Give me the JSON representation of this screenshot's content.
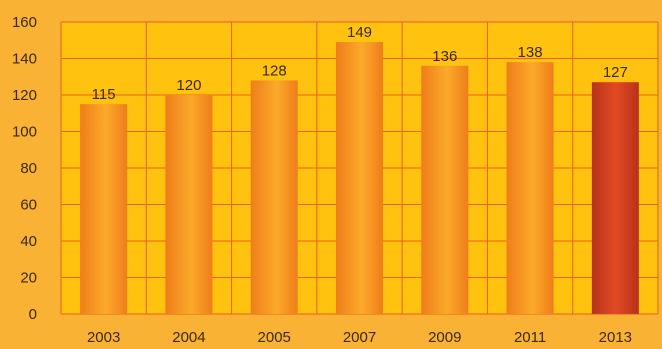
{
  "colors": {
    "background": "#f9b233",
    "plot_area": "#ffc20e",
    "grid": "#e8611a",
    "bar_light": "#fbaa2a",
    "bar_dark": "#ef7d1a",
    "highlight_light": "#e24a24",
    "highlight_dark": "#b8321a"
  },
  "chart_data": {
    "type": "bar",
    "categories": [
      "2003",
      "2004",
      "2005",
      "2007",
      "2009",
      "2011",
      "2013"
    ],
    "values": [
      115,
      120,
      128,
      149,
      136,
      138,
      127
    ],
    "highlighted_category": "2013",
    "ylim": [
      0,
      160
    ],
    "yticks": [
      0,
      20,
      40,
      60,
      80,
      100,
      120,
      140,
      160
    ],
    "grid": true,
    "data_labels": true,
    "title": "",
    "xlabel": "",
    "ylabel": ""
  }
}
